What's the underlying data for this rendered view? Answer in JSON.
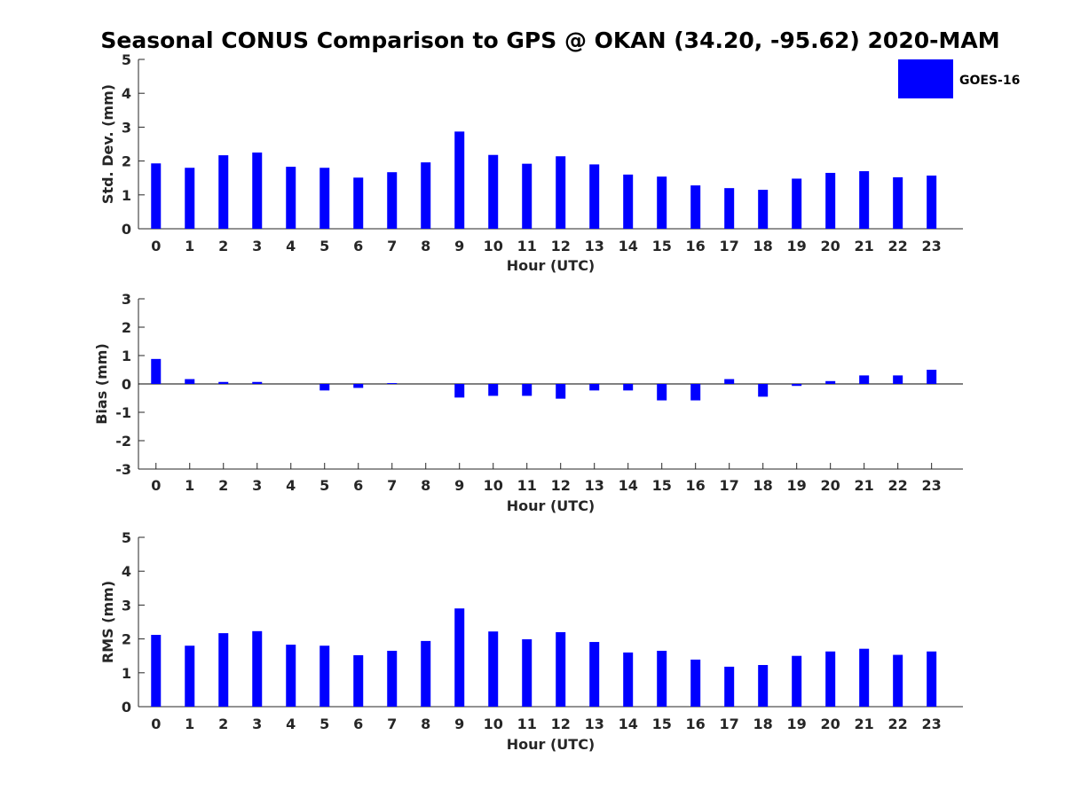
{
  "title": "Seasonal CONUS Comparison to GPS @ OKAN (34.20, -95.62) 2020-MAM",
  "legend": {
    "label": "GOES-16",
    "color": "#0000ff"
  },
  "colors": {
    "bar": "#0000ff",
    "axis": "#262626",
    "text": "#262626"
  },
  "chart_data": [
    {
      "type": "bar",
      "categories": [
        "0",
        "1",
        "2",
        "3",
        "4",
        "5",
        "6",
        "7",
        "8",
        "9",
        "10",
        "11",
        "12",
        "13",
        "14",
        "15",
        "16",
        "17",
        "18",
        "19",
        "20",
        "21",
        "22",
        "23"
      ],
      "series": [
        {
          "name": "GOES-16",
          "values": [
            1.93,
            1.8,
            2.17,
            2.25,
            1.83,
            1.8,
            1.51,
            1.67,
            1.96,
            2.87,
            2.18,
            1.92,
            2.14,
            1.9,
            1.6,
            1.54,
            1.28,
            1.2,
            1.15,
            1.48,
            1.65,
            1.7,
            1.52,
            1.57
          ]
        }
      ],
      "xlabel": "Hour (UTC)",
      "ylabel": "Std. Dev. (mm)",
      "ylim": [
        0,
        5
      ],
      "yticks": [
        "0",
        "1",
        "2",
        "3",
        "4",
        "5"
      ],
      "grid": false,
      "legend_position": "top-right"
    },
    {
      "type": "bar",
      "categories": [
        "0",
        "1",
        "2",
        "3",
        "4",
        "5",
        "6",
        "7",
        "8",
        "9",
        "10",
        "11",
        "12",
        "13",
        "14",
        "15",
        "16",
        "17",
        "18",
        "19",
        "20",
        "21",
        "22",
        "23"
      ],
      "series": [
        {
          "name": "GOES-16",
          "values": [
            0.88,
            0.17,
            0.07,
            0.07,
            0.0,
            -0.23,
            -0.14,
            0.03,
            0.0,
            -0.48,
            -0.42,
            -0.42,
            -0.52,
            -0.23,
            -0.23,
            -0.58,
            -0.58,
            0.17,
            -0.45,
            -0.07,
            0.1,
            0.3,
            0.3,
            0.5
          ]
        }
      ],
      "xlabel": "Hour (UTC)",
      "ylabel": "Bias (mm)",
      "ylim": [
        -3,
        3
      ],
      "yticks": [
        "-3",
        "-2",
        "-1",
        "0",
        "1",
        "2",
        "3"
      ],
      "grid": false,
      "zero_line": true
    },
    {
      "type": "bar",
      "categories": [
        "0",
        "1",
        "2",
        "3",
        "4",
        "5",
        "6",
        "7",
        "8",
        "9",
        "10",
        "11",
        "12",
        "13",
        "14",
        "15",
        "16",
        "17",
        "18",
        "19",
        "20",
        "21",
        "22",
        "23"
      ],
      "series": [
        {
          "name": "GOES-16",
          "values": [
            2.12,
            1.8,
            2.17,
            2.23,
            1.83,
            1.8,
            1.52,
            1.65,
            1.94,
            2.9,
            2.22,
            1.99,
            2.2,
            1.91,
            1.6,
            1.65,
            1.39,
            1.18,
            1.23,
            1.5,
            1.63,
            1.71,
            1.53,
            1.63
          ]
        }
      ],
      "xlabel": "Hour (UTC)",
      "ylabel": "RMS (mm)",
      "ylim": [
        0,
        5
      ],
      "yticks": [
        "0",
        "1",
        "2",
        "3",
        "4",
        "5"
      ],
      "grid": false
    }
  ]
}
